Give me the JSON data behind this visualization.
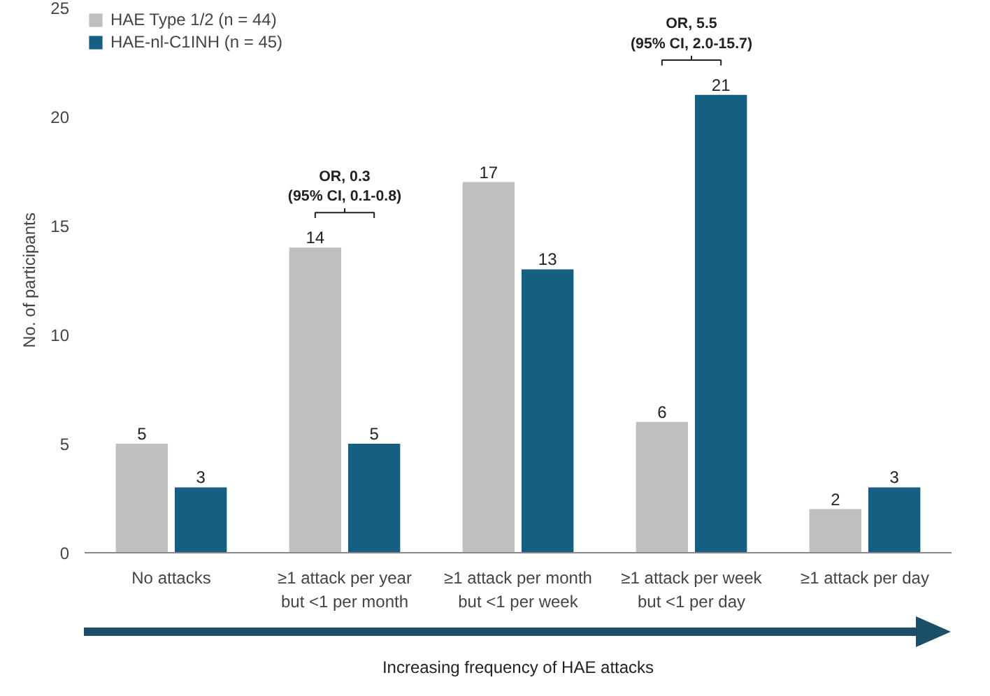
{
  "chart_data": {
    "type": "bar",
    "xlabel": "Increasing frequency of HAE attacks",
    "ylabel": "No. of participants",
    "categories": [
      "No attacks",
      "≥1 attack per year\nbut <1 per month",
      "≥1 attack per month\nbut <1 per week",
      "≥1 attack per week\nbut <1 per day",
      "≥1 attack per day"
    ],
    "series": [
      {
        "name": "HAE Type 1/2 (n = 44)",
        "color": "#bfbfbf",
        "values": [
          5,
          14,
          17,
          6,
          2
        ]
      },
      {
        "name": "HAE-nl-C1INH (n = 45)",
        "color": "#156082",
        "values": [
          3,
          5,
          13,
          21,
          3
        ]
      }
    ],
    "ylim": [
      0,
      25
    ],
    "yticks": [
      0,
      5,
      10,
      15,
      20,
      25
    ],
    "grid": false,
    "legend": "top left",
    "data_labels": true,
    "annotations": [
      "OR, 0.3\n(95% CI, 0.1-0.8)",
      "OR, 5.5\n(95% CI, 2.0-15.7)"
    ]
  }
}
